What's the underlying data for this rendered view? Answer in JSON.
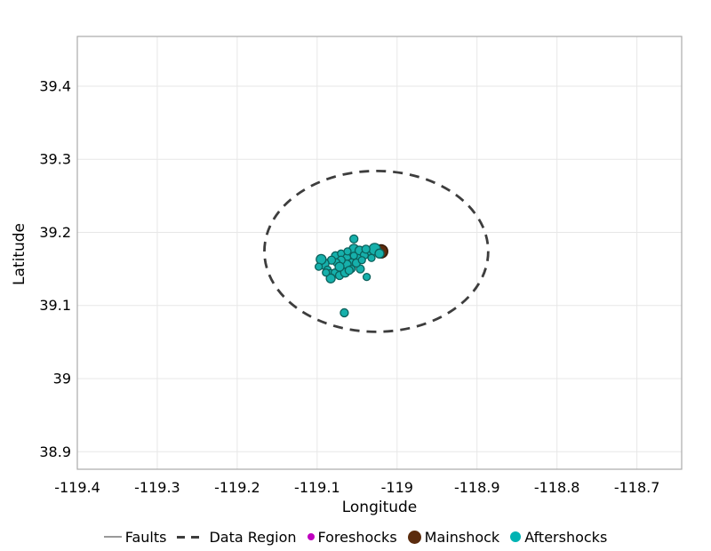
{
  "figure": {
    "background": "#ffffff"
  },
  "chart_data": {
    "type": "scatter",
    "title": "",
    "xlabel": "Longitude",
    "ylabel": "Latitude",
    "xlim": [
      -119.4,
      -118.644
    ],
    "ylim": [
      38.876,
      39.468
    ],
    "grid": true,
    "grid_color": "#e7e7e7",
    "border_color": "#ababab",
    "legend_position": "bottom",
    "x_ticks": [
      -119.4,
      -119.3,
      -119.2,
      -119.1,
      -119.0,
      -118.9,
      -118.8,
      -118.7
    ],
    "x_tick_labels": [
      "-119.4",
      "-119.3",
      "-119.2",
      "-119.1",
      "-119",
      "-118.9",
      "-118.8",
      "-118.7"
    ],
    "y_ticks": [
      39.4,
      39.3,
      39.2,
      39.1,
      39.0,
      38.9
    ],
    "y_tick_labels": [
      "39.4",
      "39.3",
      "39.2",
      "39.1",
      "39",
      "38.9"
    ],
    "series": [
      {
        "name": "Faults",
        "type": "line",
        "color": "#999999",
        "points": []
      },
      {
        "name": "Data Region",
        "type": "ellipse",
        "color": "#3d3d3d",
        "dash": [
          11,
          8
        ],
        "line_width": 2.8,
        "center": [
          -119.026,
          39.174
        ],
        "rx_deg": 0.14,
        "ry_deg": 0.11
      },
      {
        "name": "Foreshocks",
        "type": "scatter",
        "color": "#bf00bf",
        "stroke": "#8a008a",
        "points": []
      },
      {
        "name": "Mainshock",
        "type": "scatter",
        "color": "#5b2c0e",
        "stroke": "#2e1503",
        "points": [
          {
            "lon": -119.02,
            "lat": 39.174,
            "r": 7.5
          }
        ]
      },
      {
        "name": "Aftershocks",
        "type": "scatter",
        "color": "#16b0ab",
        "stroke": "#0c615c",
        "points": [
          {
            "lon": -119.054,
            "lat": 39.191,
            "r": 4.5
          },
          {
            "lon": -119.077,
            "lat": 39.168,
            "r": 4.5
          },
          {
            "lon": -119.07,
            "lat": 39.171,
            "r": 4.0
          },
          {
            "lon": -119.063,
            "lat": 39.165,
            "r": 4.5
          },
          {
            "lon": -119.054,
            "lat": 39.177,
            "r": 5.5
          },
          {
            "lon": -119.047,
            "lat": 39.175,
            "r": 5.0
          },
          {
            "lon": -119.041,
            "lat": 39.169,
            "r": 4.5
          },
          {
            "lon": -119.033,
            "lat": 39.174,
            "r": 4.5
          },
          {
            "lon": -119.028,
            "lat": 39.177,
            "r": 6.5
          },
          {
            "lon": -119.022,
            "lat": 39.171,
            "r": 5.0
          },
          {
            "lon": -119.032,
            "lat": 39.165,
            "r": 4.0
          },
          {
            "lon": -119.057,
            "lat": 39.159,
            "r": 4.0
          },
          {
            "lon": -119.063,
            "lat": 39.156,
            "r": 5.0
          },
          {
            "lon": -119.07,
            "lat": 39.162,
            "r": 4.5
          },
          {
            "lon": -119.076,
            "lat": 39.159,
            "r": 4.0
          },
          {
            "lon": -119.082,
            "lat": 39.162,
            "r": 4.5
          },
          {
            "lon": -119.092,
            "lat": 39.157,
            "r": 6.0
          },
          {
            "lon": -119.087,
            "lat": 39.149,
            "r": 4.0
          },
          {
            "lon": -119.083,
            "lat": 39.143,
            "r": 5.0
          },
          {
            "lon": -119.078,
            "lat": 39.145,
            "r": 4.0
          },
          {
            "lon": -119.072,
            "lat": 39.141,
            "r": 4.5
          },
          {
            "lon": -119.065,
            "lat": 39.145,
            "r": 5.0
          },
          {
            "lon": -119.057,
            "lat": 39.15,
            "r": 4.0
          },
          {
            "lon": -119.046,
            "lat": 39.15,
            "r": 4.5
          },
          {
            "lon": -119.038,
            "lat": 39.139,
            "r": 4.0
          },
          {
            "lon": -119.083,
            "lat": 39.137,
            "r": 5.0
          },
          {
            "lon": -119.066,
            "lat": 39.09,
            "r": 4.5
          },
          {
            "lon": -119.095,
            "lat": 39.163,
            "r": 5.5
          },
          {
            "lon": -119.098,
            "lat": 39.153,
            "r": 4.0
          },
          {
            "lon": -119.049,
            "lat": 39.165,
            "r": 4.0
          },
          {
            "lon": -119.054,
            "lat": 39.168,
            "r": 4.0
          },
          {
            "lon": -119.062,
            "lat": 39.174,
            "r": 4.0
          },
          {
            "lon": -119.072,
            "lat": 39.153,
            "r": 5.0
          },
          {
            "lon": -119.051,
            "lat": 39.158,
            "r": 4.5
          },
          {
            "lon": -119.039,
            "lat": 39.177,
            "r": 4.5
          },
          {
            "lon": -119.044,
            "lat": 39.162,
            "r": 4.0
          },
          {
            "lon": -119.06,
            "lat": 39.148,
            "r": 4.5
          },
          {
            "lon": -119.089,
            "lat": 39.145,
            "r": 4.0
          }
        ]
      }
    ]
  },
  "legend": {
    "items": [
      {
        "id": "faults",
        "label": "Faults",
        "marker": "line",
        "color": "#999999",
        "size": 2
      },
      {
        "id": "data-region",
        "label": "Data Region",
        "marker": "dash",
        "color": "#3d3d3d",
        "size": 3
      },
      {
        "id": "foreshocks",
        "label": "Foreshocks",
        "marker": "dot",
        "color": "#bf00bf",
        "size": 8
      },
      {
        "id": "mainshock",
        "label": "Mainshock",
        "marker": "dot",
        "color": "#5b2c0e",
        "size": 15
      },
      {
        "id": "aftershocks",
        "label": "Aftershocks",
        "marker": "dot",
        "color": "#00b3b3",
        "size": 12
      }
    ]
  }
}
